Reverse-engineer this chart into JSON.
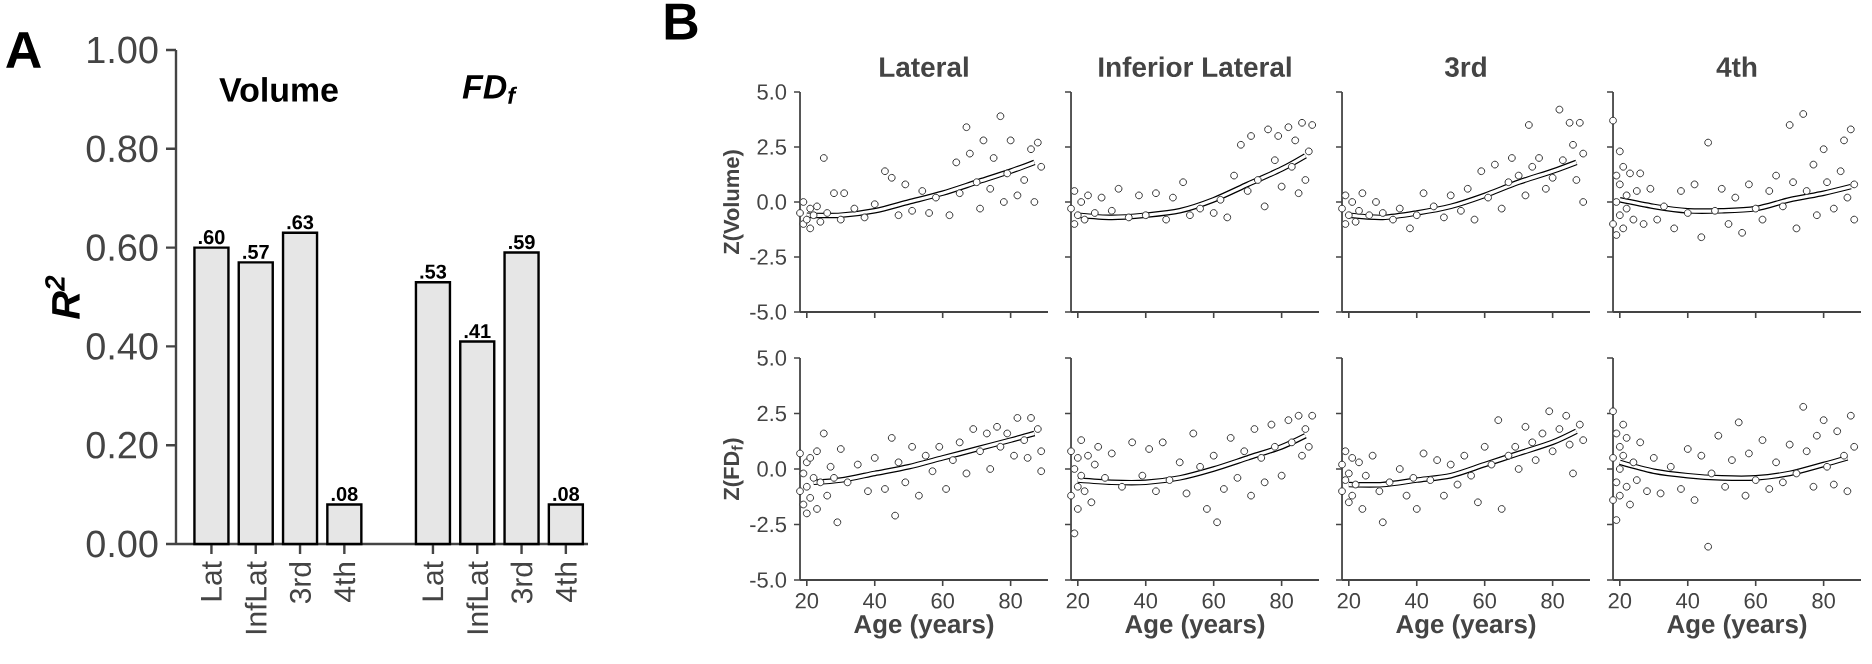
{
  "chart_data": [
    {
      "type": "bar",
      "ylabel": "R$^{2}$",
      "categories": [
        "Lat",
        "InfLat",
        "3rd",
        "4th",
        null,
        "Lat",
        "InfLat",
        "3rd",
        "4th"
      ],
      "values": [
        0.6,
        0.57,
        0.63,
        0.08,
        null,
        0.53,
        0.41,
        0.59,
        0.08
      ],
      "value_labels": [
        ".60",
        ".57",
        ".63",
        ".08",
        null,
        ".53",
        ".41",
        ".59",
        ".08"
      ],
      "color": "#e6e6e6",
      "ylim": [
        0,
        1
      ],
      "yticks": [
        {
          "value": 0,
          "label": "0.00"
        },
        {
          "value": 0.2,
          "label": "0.20"
        },
        {
          "value": 0.4,
          "label": "0.40"
        },
        {
          "value": 0.6,
          "label": "0.60"
        },
        {
          "value": 0.8,
          "label": "0.80"
        },
        {
          "value": 1,
          "label": "1.00"
        }
      ],
      "annotations": [
        "A",
        "Volume",
        "FD$_{f}$"
      ]
    },
    {
      "type": "scatter",
      "title": "Lateral",
      "ylabel": "Z(Volume)",
      "xlim": [
        18,
        91
      ],
      "ylim": [
        -5,
        5
      ],
      "xticks": [
        20,
        40,
        60,
        80
      ],
      "yticks": [
        {
          "value": -5,
          "label": "-5.0"
        },
        {
          "value": -2.5,
          "label": "-2.5"
        },
        {
          "value": 0,
          "label": "0.0"
        },
        {
          "value": 2.5,
          "label": "2.5"
        },
        {
          "value": 5,
          "label": "5.0"
        }
      ],
      "tick_labels": "y",
      "marker": "circle",
      "annotations": [
        "B"
      ],
      "series": [
        {
          "color": "#333333",
          "x": [
            18,
            19,
            19,
            20,
            21,
            21,
            22,
            23,
            24,
            25,
            26,
            28,
            30,
            31,
            34,
            37,
            40,
            43,
            45,
            47,
            49,
            51,
            54,
            56,
            58,
            62,
            64,
            65,
            67,
            68,
            70,
            71,
            72,
            74,
            75,
            77,
            78,
            79,
            80,
            82,
            84,
            86,
            87,
            88,
            89
          ],
          "values": [
            -0.5,
            -1.0,
            0.0,
            -0.8,
            -0.3,
            -1.2,
            -0.6,
            -0.2,
            -0.9,
            2.0,
            -0.5,
            0.4,
            -0.8,
            0.4,
            -0.3,
            -0.7,
            -0.1,
            1.4,
            1.1,
            -0.6,
            0.8,
            -0.4,
            0.5,
            -0.5,
            0.2,
            -0.6,
            1.8,
            0.4,
            3.4,
            2.2,
            0.9,
            -0.3,
            2.8,
            0.6,
            2.0,
            3.9,
            0.0,
            1.3,
            2.8,
            0.3,
            1.0,
            2.4,
            0.0,
            2.7,
            1.6
          ]
        },
        {
          "type": "line",
          "marker": "none",
          "color": "#000000",
          "x": [
            20,
            30,
            40,
            50,
            60,
            70,
            80,
            87
          ],
          "values": [
            -0.6,
            -0.6,
            -0.4,
            0,
            0.4,
            0.9,
            1.4,
            1.8
          ]
        }
      ]
    },
    {
      "type": "scatter",
      "title": "Inferior Lateral",
      "xlim": [
        18,
        91
      ],
      "ylim": [
        -5,
        5
      ],
      "xticks": [
        20,
        40,
        60,
        80
      ],
      "yticks": [
        -5,
        -2.5,
        0,
        2.5,
        5
      ],
      "tick_labels": false,
      "marker": "circle",
      "series": [
        {
          "color": "#333333",
          "x": [
            18,
            19,
            19,
            20,
            21,
            22,
            23,
            25,
            27,
            30,
            32,
            35,
            38,
            40,
            43,
            46,
            48,
            51,
            53,
            56,
            60,
            62,
            64,
            66,
            68,
            70,
            71,
            73,
            75,
            76,
            78,
            79,
            80,
            82,
            83,
            84,
            85,
            86,
            87,
            88,
            89
          ],
          "values": [
            -0.3,
            -1.0,
            0.5,
            -0.6,
            0.0,
            -0.8,
            0.3,
            -0.5,
            0.2,
            -0.4,
            0.6,
            -0.7,
            0.3,
            -0.6,
            0.4,
            -0.8,
            0.2,
            0.9,
            -0.6,
            -0.3,
            -0.5,
            0.1,
            -0.7,
            1.2,
            2.6,
            0.5,
            3.0,
            1.0,
            -0.2,
            3.3,
            1.9,
            3.0,
            0.7,
            3.4,
            1.6,
            2.8,
            0.4,
            3.6,
            1.0,
            2.3,
            3.5
          ]
        },
        {
          "type": "line",
          "marker": "none",
          "color": "#000000",
          "x": [
            20,
            30,
            40,
            50,
            60,
            70,
            80,
            87
          ],
          "values": [
            -0.6,
            -0.7,
            -0.6,
            -0.4,
            0.1,
            0.8,
            1.5,
            2.1
          ]
        }
      ]
    },
    {
      "type": "scatter",
      "title": "3rd",
      "xlim": [
        18,
        91
      ],
      "ylim": [
        -5,
        5
      ],
      "xticks": [
        20,
        40,
        60,
        80
      ],
      "yticks": [
        -5,
        -2.5,
        0,
        2.5,
        5
      ],
      "tick_labels": false,
      "marker": "circle",
      "series": [
        {
          "color": "#333333",
          "x": [
            18,
            19,
            19,
            20,
            21,
            22,
            23,
            24,
            26,
            28,
            30,
            33,
            35,
            38,
            40,
            42,
            45,
            48,
            50,
            53,
            55,
            57,
            59,
            61,
            63,
            65,
            67,
            68,
            70,
            72,
            73,
            74,
            76,
            78,
            80,
            82,
            83,
            85,
            86,
            87,
            88,
            89,
            89
          ],
          "values": [
            -0.3,
            -1.0,
            0.3,
            -0.6,
            0.0,
            -0.9,
            -0.4,
            0.4,
            -0.6,
            0.0,
            -0.5,
            -0.8,
            -0.3,
            -1.2,
            -0.6,
            0.4,
            -0.2,
            -0.7,
            0.3,
            -0.4,
            0.6,
            -0.8,
            1.4,
            0.2,
            1.7,
            -0.3,
            0.9,
            2.0,
            1.2,
            0.3,
            3.5,
            1.6,
            2.0,
            0.6,
            1.1,
            4.2,
            1.9,
            3.6,
            2.6,
            1.0,
            3.6,
            2.2,
            0.0
          ]
        },
        {
          "type": "line",
          "marker": "none",
          "color": "#000000",
          "x": [
            20,
            30,
            40,
            50,
            60,
            70,
            80,
            87
          ],
          "values": [
            -0.6,
            -0.7,
            -0.5,
            -0.2,
            0.3,
            0.9,
            1.4,
            1.8
          ]
        }
      ]
    },
    {
      "type": "scatter",
      "title": "4th",
      "xlim": [
        18,
        91
      ],
      "ylim": [
        -5,
        5
      ],
      "xticks": [
        20,
        40,
        60,
        80
      ],
      "yticks": [
        -5,
        -2.5,
        0,
        2.5,
        5
      ],
      "tick_labels": false,
      "marker": "circle",
      "series": [
        {
          "color": "#333333",
          "x": [
            18,
            18,
            19,
            19,
            19,
            20,
            20,
            20,
            21,
            21,
            22,
            22,
            23,
            24,
            25,
            26,
            27,
            29,
            31,
            33,
            36,
            38,
            40,
            42,
            44,
            46,
            48,
            50,
            52,
            54,
            56,
            58,
            60,
            62,
            64,
            66,
            68,
            70,
            71,
            72,
            74,
            75,
            77,
            78,
            80,
            81,
            83,
            85,
            86,
            87,
            88,
            89,
            89
          ],
          "values": [
            3.7,
            -1.0,
            1.2,
            0.0,
            -1.5,
            2.3,
            0.8,
            -0.6,
            1.6,
            -1.2,
            0.3,
            -0.3,
            1.3,
            -0.8,
            0.5,
            1.3,
            -1.0,
            0.6,
            -0.8,
            -0.2,
            -1.2,
            0.5,
            -0.5,
            0.8,
            -1.6,
            2.7,
            -0.4,
            0.6,
            -1.0,
            0.2,
            -1.4,
            0.8,
            -0.3,
            -0.8,
            0.5,
            1.2,
            -0.2,
            3.5,
            0.9,
            -1.2,
            4.0,
            0.5,
            1.7,
            -0.6,
            2.4,
            0.9,
            -0.3,
            1.4,
            2.8,
            0.2,
            3.3,
            0.8,
            -0.8
          ]
        },
        {
          "type": "line",
          "marker": "none",
          "color": "#000000",
          "x": [
            20,
            30,
            40,
            50,
            60,
            70,
            80,
            88
          ],
          "values": [
            0.1,
            -0.2,
            -0.4,
            -0.4,
            -0.3,
            0.1,
            0.4,
            0.7
          ]
        }
      ]
    },
    {
      "type": "scatter",
      "ylabel": "Z(FD$_{f}$)",
      "xlabel": "Age (years)",
      "xlim": [
        18,
        91
      ],
      "ylim": [
        -5,
        5
      ],
      "xticks": [
        20,
        40,
        60,
        80
      ],
      "yticks": [
        {
          "value": -5,
          "label": "-5.0"
        },
        {
          "value": -2.5,
          "label": "-2.5"
        },
        {
          "value": 0,
          "label": "0.0"
        },
        {
          "value": 2.5,
          "label": "2.5"
        },
        {
          "value": 5,
          "label": "5.0"
        }
      ],
      "marker": "circle",
      "series": [
        {
          "color": "#333333",
          "x": [
            18,
            18,
            19,
            19,
            20,
            20,
            20,
            21,
            21,
            22,
            23,
            23,
            24,
            25,
            26,
            27,
            28,
            29,
            30,
            32,
            35,
            38,
            40,
            43,
            45,
            46,
            47,
            49,
            51,
            53,
            55,
            57,
            59,
            61,
            63,
            65,
            67,
            69,
            71,
            73,
            74,
            76,
            77,
            79,
            81,
            82,
            84,
            85,
            86,
            88,
            89,
            89
          ],
          "values": [
            0.7,
            -1.0,
            -0.2,
            -1.6,
            0.3,
            -0.8,
            -2.0,
            0.5,
            -1.3,
            -0.4,
            0.8,
            -1.8,
            -0.6,
            1.6,
            -1.2,
            0.1,
            -0.4,
            -2.4,
            0.9,
            -0.6,
            0.2,
            -1.0,
            0.5,
            -0.9,
            1.4,
            -2.1,
            0.3,
            -0.6,
            1.0,
            -1.2,
            0.6,
            -0.1,
            1.0,
            -0.9,
            0.4,
            1.2,
            -0.2,
            1.8,
            0.8,
            1.6,
            0.0,
            1.9,
            1.0,
            1.6,
            0.6,
            2.3,
            1.3,
            0.5,
            2.3,
            1.8,
            -0.1,
            0.8
          ]
        },
        {
          "type": "line",
          "marker": "none",
          "color": "#000000",
          "x": [
            22,
            30,
            40,
            50,
            60,
            70,
            80,
            87
          ],
          "values": [
            -0.6,
            -0.5,
            -0.2,
            0.1,
            0.5,
            0.9,
            1.3,
            1.6
          ]
        }
      ]
    },
    {
      "type": "scatter",
      "xlabel": "Age (years)",
      "xlim": [
        18,
        91
      ],
      "ylim": [
        -5,
        5
      ],
      "xticks": [
        20,
        40,
        60,
        80
      ],
      "yticks": [
        -5,
        -2.5,
        0,
        2.5,
        5
      ],
      "tick_labels": "x",
      "marker": "circle",
      "series": [
        {
          "color": "#333333",
          "x": [
            18,
            18,
            19,
            19,
            20,
            20,
            20,
            21,
            21,
            22,
            23,
            24,
            25,
            26,
            28,
            30,
            33,
            36,
            39,
            41,
            43,
            45,
            47,
            50,
            52,
            54,
            56,
            58,
            60,
            61,
            63,
            65,
            67,
            69,
            71,
            72,
            74,
            75,
            77,
            78,
            80,
            82,
            83,
            85,
            86,
            87,
            88,
            89
          ],
          "values": [
            0.8,
            -1.2,
            0.0,
            -2.9,
            0.5,
            -0.8,
            -1.8,
            -0.3,
            1.3,
            -1.0,
            0.6,
            -1.5,
            0.2,
            1.0,
            -0.4,
            0.7,
            -0.8,
            1.2,
            -0.3,
            0.9,
            -1.0,
            1.2,
            -0.5,
            0.3,
            -1.1,
            1.6,
            0.1,
            -1.8,
            0.6,
            -2.4,
            -0.9,
            1.4,
            -0.4,
            0.8,
            -1.2,
            1.8,
            0.5,
            -0.6,
            2.0,
            1.0,
            -0.3,
            2.2,
            1.2,
            2.4,
            0.6,
            1.8,
            1.0,
            2.4
          ]
        },
        {
          "type": "line",
          "marker": "none",
          "color": "#000000",
          "x": [
            20,
            30,
            40,
            50,
            60,
            70,
            80,
            87
          ],
          "values": [
            -0.5,
            -0.6,
            -0.6,
            -0.4,
            0.0,
            0.5,
            1.0,
            1.5
          ]
        }
      ]
    },
    {
      "type": "scatter",
      "xlabel": "Age (years)",
      "xlim": [
        18,
        91
      ],
      "ylim": [
        -5,
        5
      ],
      "xticks": [
        20,
        40,
        60,
        80
      ],
      "yticks": [
        -5,
        -2.5,
        0,
        2.5,
        5
      ],
      "tick_labels": "x",
      "marker": "circle",
      "series": [
        {
          "color": "#333333",
          "x": [
            18,
            18,
            19,
            19,
            20,
            20,
            21,
            21,
            22,
            23,
            24,
            25,
            27,
            29,
            30,
            32,
            35,
            37,
            39,
            40,
            42,
            44,
            46,
            48,
            50,
            52,
            54,
            56,
            58,
            60,
            62,
            64,
            65,
            67,
            69,
            70,
            72,
            74,
            75,
            77,
            79,
            80,
            82,
            84,
            85,
            86,
            88,
            89
          ],
          "values": [
            0.2,
            -1.0,
            -0.5,
            0.8,
            -1.5,
            -0.2,
            0.5,
            -1.2,
            -0.7,
            0.3,
            -1.8,
            -0.3,
            0.6,
            -1.0,
            -2.4,
            -0.6,
            0.0,
            -1.2,
            -0.4,
            -1.8,
            0.7,
            -0.5,
            0.4,
            -1.2,
            0.2,
            -0.7,
            0.6,
            -0.3,
            -1.5,
            1.0,
            0.2,
            2.2,
            -1.8,
            0.6,
            1.0,
            0.0,
            1.9,
            1.2,
            0.4,
            1.6,
            2.6,
            0.8,
            1.8,
            2.4,
            1.1,
            -0.2,
            2.0,
            1.3
          ]
        },
        {
          "type": "line",
          "marker": "none",
          "color": "#000000",
          "x": [
            20,
            30,
            40,
            50,
            60,
            70,
            80,
            87
          ],
          "values": [
            -0.7,
            -0.7,
            -0.5,
            -0.3,
            0.2,
            0.7,
            1.2,
            1.7
          ]
        }
      ]
    },
    {
      "type": "scatter",
      "xlabel": "Age (years)",
      "xlim": [
        18,
        91
      ],
      "ylim": [
        -5,
        5
      ],
      "xticks": [
        20,
        40,
        60,
        80
      ],
      "yticks": [
        -5,
        -2.5,
        0,
        2.5,
        5
      ],
      "tick_labels": "x",
      "marker": "circle",
      "series": [
        {
          "color": "#333333",
          "x": [
            18,
            18,
            18,
            19,
            19,
            19,
            20,
            20,
            20,
            21,
            21,
            22,
            22,
            23,
            24,
            25,
            26,
            28,
            30,
            32,
            35,
            38,
            40,
            42,
            44,
            46,
            47,
            49,
            51,
            53,
            55,
            57,
            58,
            60,
            62,
            64,
            66,
            68,
            70,
            72,
            74,
            75,
            77,
            78,
            80,
            81,
            83,
            84,
            86,
            87,
            88,
            89
          ],
          "values": [
            2.6,
            -1.4,
            0.5,
            1.6,
            -0.6,
            -2.3,
            1.0,
            0.0,
            -1.2,
            2.0,
            0.6,
            -0.8,
            1.4,
            -1.6,
            0.3,
            -0.5,
            1.2,
            -1.0,
            0.5,
            -1.1,
            0.1,
            -0.9,
            0.9,
            -1.4,
            0.6,
            -3.5,
            -0.2,
            1.5,
            -0.8,
            0.4,
            2.1,
            -1.2,
            0.7,
            -0.5,
            1.3,
            -0.9,
            0.3,
            -0.6,
            1.1,
            -0.2,
            2.8,
            0.8,
            -0.8,
            1.5,
            2.2,
            0.1,
            -0.7,
            1.7,
            0.6,
            -1.0,
            2.4,
            1.0
          ]
        },
        {
          "type": "line",
          "marker": "none",
          "color": "#000000",
          "x": [
            20,
            30,
            40,
            50,
            60,
            70,
            80,
            87
          ],
          "values": [
            0.3,
            -0.1,
            -0.3,
            -0.4,
            -0.4,
            -0.2,
            0.2,
            0.5
          ]
        }
      ]
    }
  ]
}
